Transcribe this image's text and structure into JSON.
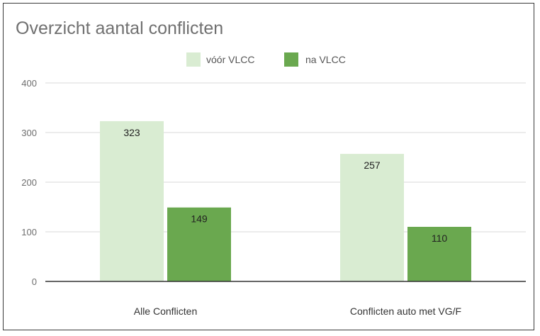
{
  "chart_data": {
    "type": "bar",
    "title": "Overzicht aantal conflicten",
    "categories": [
      "Alle Conflicten",
      "Conflicten auto met VG/F"
    ],
    "series": [
      {
        "name": "vóór VLCC",
        "values": [
          323,
          257
        ],
        "color": "#d9ecd2"
      },
      {
        "name": "na VLCC",
        "values": [
          149,
          110
        ],
        "color": "#6aa84f"
      }
    ],
    "ylim": [
      0,
      400
    ],
    "yticks": [
      0,
      100,
      200,
      300,
      400
    ],
    "grid": true,
    "legend_position": "top-center",
    "data_labels": true,
    "xlabel": "",
    "ylabel": ""
  }
}
